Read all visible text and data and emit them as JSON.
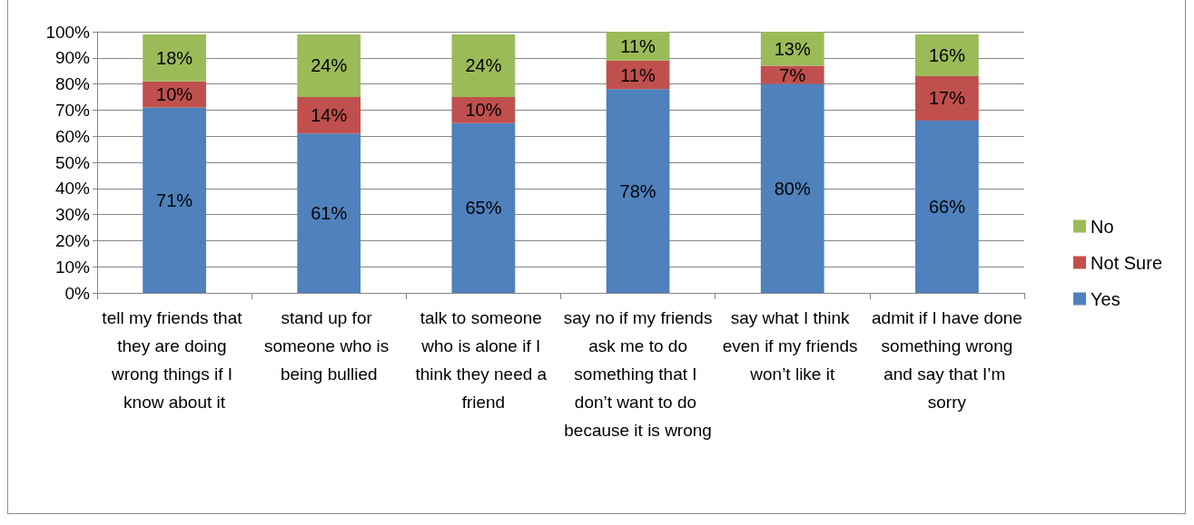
{
  "chart_data": {
    "type": "bar",
    "stacked": true,
    "categories": [
      "tell my friends that they are doing wrong things if I know about it",
      "stand up for someone who is being bullied",
      "talk to someone who is alone if I think they need a friend",
      "say no if my friends ask me to do something that I don’t want to do because it is wrong",
      "say what I think even if my friends won’t like it",
      "admit if I have done something wrong and say that I’m sorry"
    ],
    "ylim": [
      0,
      100
    ],
    "yticks": [
      {
        "value": 0,
        "label": "0%"
      },
      {
        "value": 10,
        "label": "10%"
      },
      {
        "value": 20,
        "label": "20%"
      },
      {
        "value": 30,
        "label": "30%"
      },
      {
        "value": 40,
        "label": "40%"
      },
      {
        "value": 50,
        "label": "50%"
      },
      {
        "value": 60,
        "label": "60%"
      },
      {
        "value": 70,
        "label": "70%"
      },
      {
        "value": 80,
        "label": "80%"
      },
      {
        "value": 90,
        "label": "90%"
      },
      {
        "value": 100,
        "label": "100%"
      }
    ],
    "grid": "y",
    "legend": "right",
    "series": [
      {
        "name": "Yes",
        "color": "#4f81bd",
        "values": [
          71,
          61,
          65,
          78,
          80,
          66
        ],
        "value_labels": [
          "71%",
          "61%",
          "65%",
          "78%",
          "80%",
          "66%"
        ]
      },
      {
        "name": "Not Sure",
        "color": "#c0504d",
        "values": [
          10,
          14,
          10,
          11,
          7,
          17
        ],
        "value_labels": [
          "10%",
          "14%",
          "10%",
          "11%",
          "7%",
          "17%"
        ]
      },
      {
        "name": "No",
        "color": "#9bbb59",
        "values": [
          18,
          24,
          24,
          11,
          13,
          16
        ],
        "value_labels": [
          "18%",
          "24%",
          "24%",
          "11%",
          "13%",
          "16%"
        ]
      }
    ]
  }
}
